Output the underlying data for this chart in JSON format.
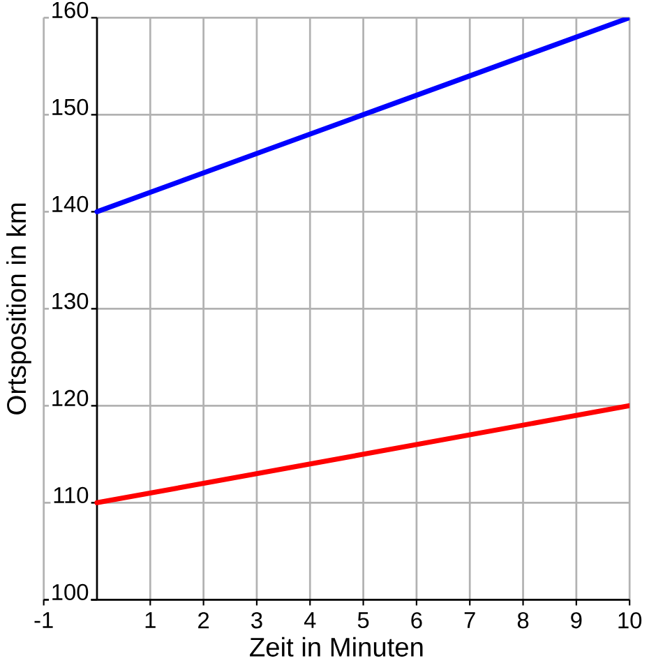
{
  "chart_data": {
    "type": "line",
    "x": [
      0,
      10
    ],
    "xlabel": "Zeit in Minuten",
    "ylabel": "Ortsposition in km",
    "xlim": [
      -1,
      10
    ],
    "ylim": [
      100,
      160
    ],
    "xticks": [
      -1,
      1,
      2,
      3,
      4,
      5,
      6,
      7,
      8,
      9,
      10
    ],
    "yticks": [
      100,
      110,
      120,
      130,
      140,
      150,
      160
    ],
    "grid": true,
    "marker": "none",
    "line_style": "solid",
    "series": [
      {
        "color": "#0000ff",
        "values": [
          140,
          160
        ]
      },
      {
        "color": "#ff0000",
        "values": [
          110,
          120
        ]
      }
    ]
  }
}
